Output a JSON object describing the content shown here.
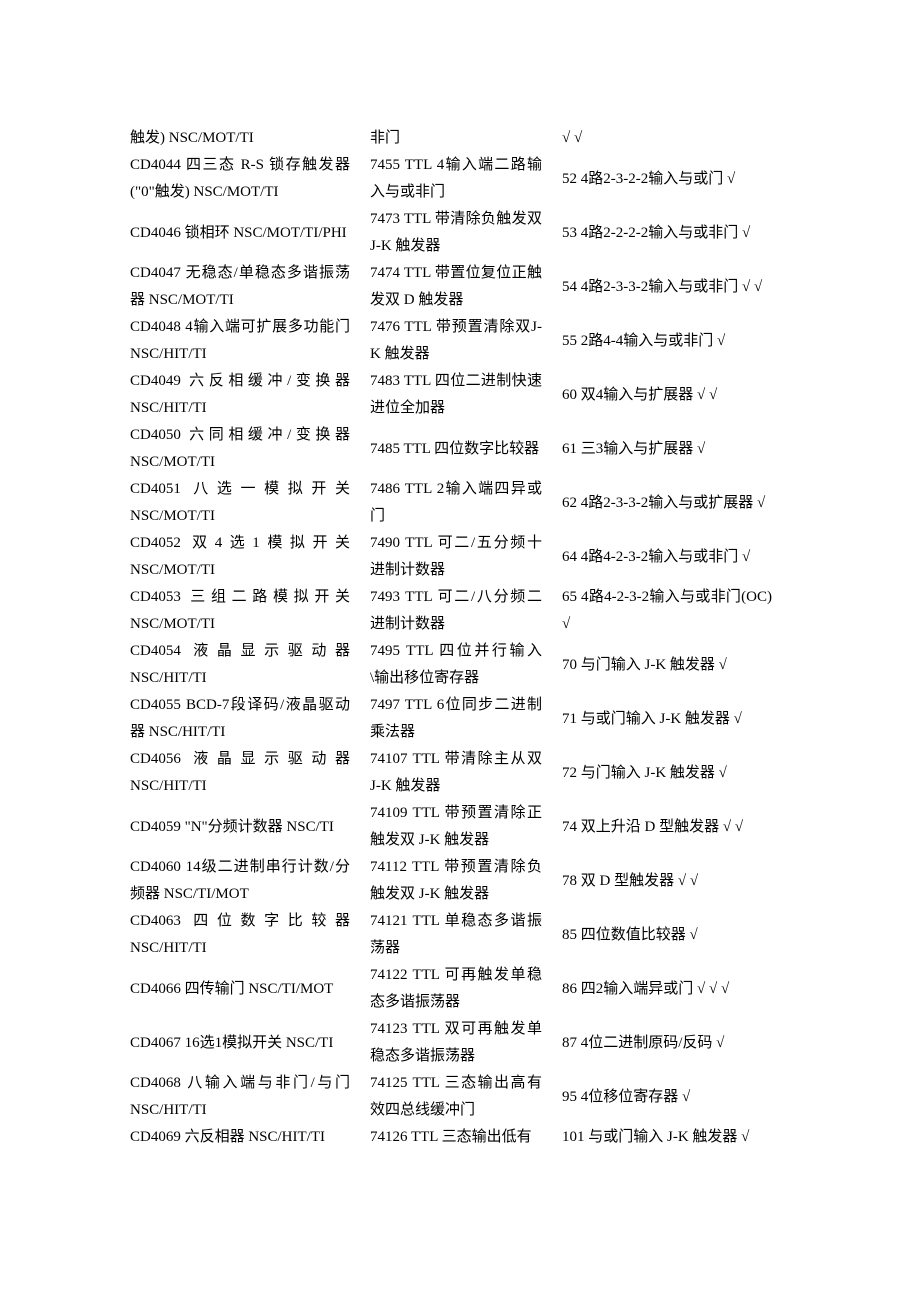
{
  "columns": {
    "col1": [
      "触发) NSC/MOT/TI",
      "CD4044    四三态 R-S 锁存触发器 (\"0\"触发) NSC/MOT/TI",
      "CD4046                        锁相环 NSC/MOT/TI/PHI",
      "CD4047   无稳态/单稳态多谐振荡器  NSC/MOT/TI",
      "CD4048   4输入端可扩展多功能门 NSC/HIT/TI",
      "CD4049         六反相缓冲/变换器 NSC/HIT/TI",
      "CD4050         六同相缓冲/变换器 NSC/MOT/TI",
      "CD4051             八选一模拟开关 NSC/MOT/TI",
      "CD4052            双4选1模拟开关 NSC/MOT/TI",
      "CD4053           三组二路模拟开关 NSC/MOT/TI",
      "CD4054               液晶显示驱动器 NSC/HIT/TI",
      "CD4055 BCD-7段译码/液晶驱动器 NSC/HIT/TI",
      "CD4056               液晶显示驱动器 NSC/HIT/TI",
      "CD4059 \"N\"分频计数器  NSC/TI",
      "CD4060    14级二进制串行计数/分频器  NSC/TI/MOT",
      "CD4063             四位数字比较器 NSC/HIT/TI",
      "CD4066  四传输门  NSC/TI/MOT",
      "CD4067 16选1模拟开关  NSC/TI",
      "CD4068      八输入端与非门/与门 NSC/HIT/TI",
      "CD4069  六反相器  NSC/HIT/TI"
    ],
    "col2": [
      "非门",
      "7455 TTL 4输入端二路输入与或非门",
      "7473 TTL  带清除负触发双 J-K 触发器",
      "7474 TTL  带置位复位正触发双 D 触发器",
      "7476 TTL  带预置清除双J-K 触发器",
      "7483 TTL  四位二进制快速进位全加器",
      "7485 TTL  四位数字比较器",
      "7486 TTL 2输入端四异或门",
      "7490 TTL  可二/五分频十进制计数器",
      "7493 TTL  可二/八分频二进制计数器",
      "7495 TTL  四位并行输入\\输出移位寄存器",
      "7497 TTL  6位同步二进制乘法器",
      "74107 TTL  带清除主从双J-K 触发器",
      "74109 TTL  带预置清除正触发双 J-K 触发器",
      "74112 TTL  带预置清除负触发双 J-K 触发器",
      "74121 TTL  单稳态多谐振荡器",
      "74122 TTL  可再触发单稳态多谐振荡器",
      "74123 TTL  双可再触发单稳态多谐振荡器",
      "74125 TTL  三态输出高有效四总线缓冲门",
      "74126 TTL  三态输出低有"
    ],
    "col3": [
      "√ √",
      "52 4路2-3-2-2输入与或门  √",
      "53 4路2-2-2-2输入与或非门  √",
      "54 4路2-3-3-2输入与或非门  √ √",
      "55 2路4-4输入与或非门  √",
      "60  双4输入与扩展器  √ √",
      "61  三3输入与扩展器  √",
      "62 4路2-3-3-2输入与或扩展器  √",
      "64 4路4-2-3-2输入与或非门  √",
      "65 4路4-2-3-2输入与或非门(OC) √",
      "70  与门输入 J-K 触发器  √",
      "71  与或门输入 J-K 触发器  √",
      "72  与门输入 J-K 触发器  √",
      "74  双上升沿 D 型触发器  √ √",
      "78  双 D 型触发器  √ √",
      "85  四位数值比较器  √",
      "86  四2输入端异或门  √ √ √",
      "87 4位二进制原码/反码  √",
      "95 4位移位寄存器  √",
      "101  与或门输入 J-K 触发器  √"
    ]
  },
  "heights": {
    "col1": [
      "h1",
      "h2",
      "h2",
      "h2",
      "h2",
      "h2",
      "h2",
      "h2",
      "h2",
      "h2",
      "h2",
      "h2",
      "h2",
      "h2",
      "h2",
      "h2",
      "h2",
      "h2",
      "h2",
      "h1"
    ],
    "col2": [
      "h1",
      "h2",
      "h2",
      "h2",
      "h2",
      "h2",
      "h2",
      "h2",
      "h2",
      "h2",
      "h2",
      "h2",
      "h2",
      "h2",
      "h2",
      "h2",
      "h2",
      "h2",
      "h2",
      "h1"
    ],
    "col3": [
      "h1",
      "h2",
      "h2",
      "h2",
      "h2",
      "h2",
      "h2",
      "h2",
      "h2",
      "h2",
      "h2",
      "h2",
      "h2",
      "h2",
      "h2",
      "h2",
      "h2",
      "h2",
      "h2",
      "h1"
    ]
  }
}
